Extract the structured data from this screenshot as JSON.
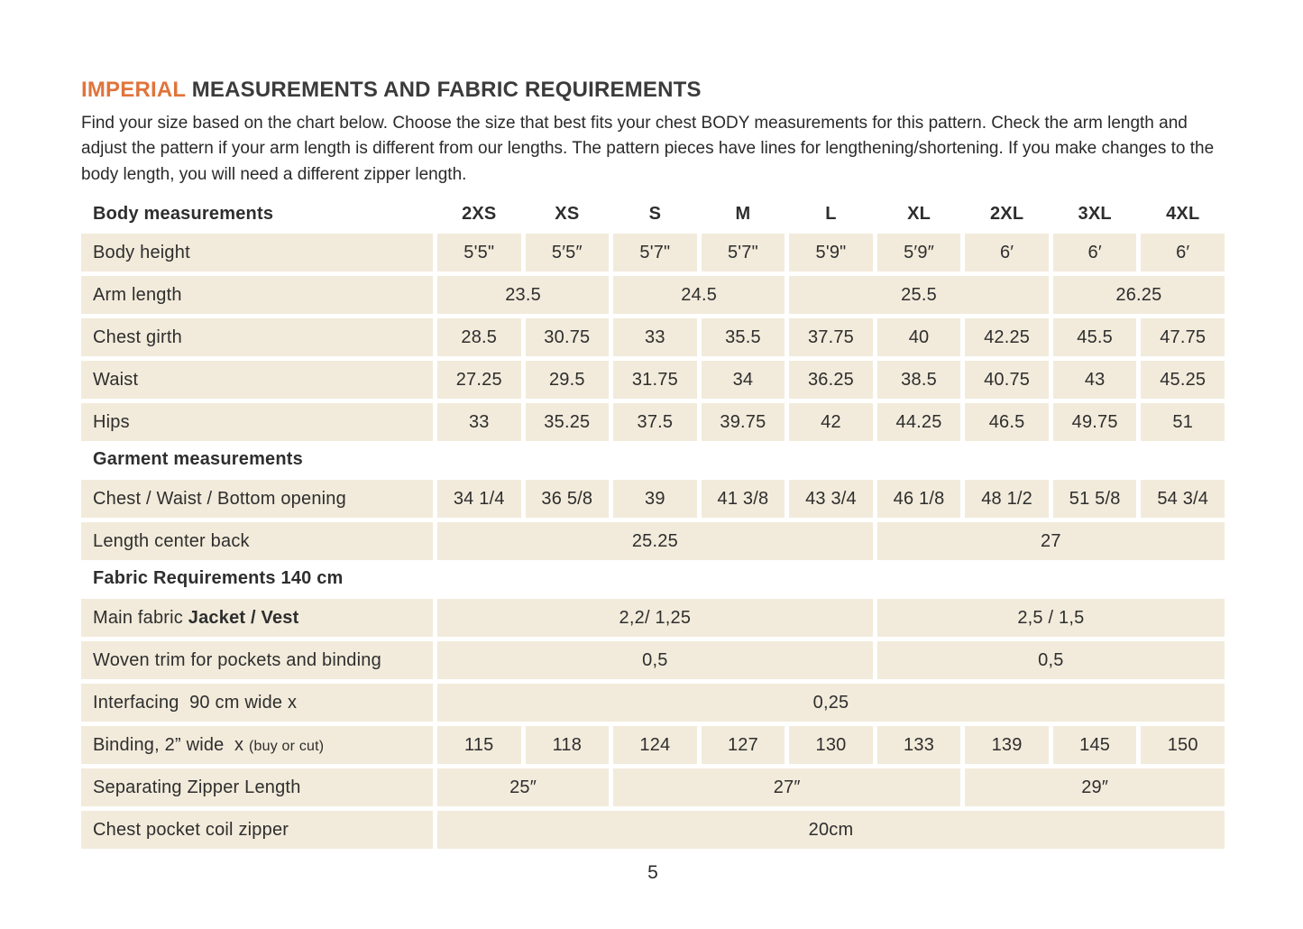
{
  "page": {
    "title_highlight": "IMPERIAL",
    "title_rest": " MEASUREMENTS AND FABRIC REQUIREMENTS",
    "intro": "Find your size based on the chart below. Choose the size that best fits your chest BODY measurements for this pattern. Check the arm length and adjust the pattern if your arm length is different from our lengths. The pattern pieces have lines for lengthening/shortening. If you make changes to the body length, you will need a different zipper length.",
    "page_number": "5"
  },
  "colors": {
    "accent_orange": "#e0743c",
    "cell_beige": "#f2ebdb",
    "text_dark": "#2e2e2e"
  },
  "table": {
    "size_columns": [
      "2XS",
      "XS",
      "S",
      "M",
      "L",
      "XL",
      "2XL",
      "3XL",
      "4XL"
    ],
    "rows": [
      {
        "kind": "colheader",
        "label": "Body measurements"
      },
      {
        "kind": "data",
        "label": "Body height",
        "cells": [
          {
            "span": 1,
            "text": "5'5\""
          },
          {
            "span": 1,
            "text": "5′5″"
          },
          {
            "span": 1,
            "text": "5'7\""
          },
          {
            "span": 1,
            "text": "5'7\""
          },
          {
            "span": 1,
            "text": "5'9\""
          },
          {
            "span": 1,
            "text": "5′9″"
          },
          {
            "span": 1,
            "text": "6′"
          },
          {
            "span": 1,
            "text": "6′"
          },
          {
            "span": 1,
            "text": "6′"
          }
        ]
      },
      {
        "kind": "data",
        "label": "Arm length",
        "cells": [
          {
            "span": 2,
            "text": "23.5"
          },
          {
            "span": 2,
            "text": "24.5"
          },
          {
            "span": 3,
            "text": "25.5"
          },
          {
            "span": 2,
            "text": "26.25"
          }
        ]
      },
      {
        "kind": "data",
        "label": "Chest girth",
        "cells": [
          {
            "span": 1,
            "text": "28.5"
          },
          {
            "span": 1,
            "text": "30.75"
          },
          {
            "span": 1,
            "text": "33"
          },
          {
            "span": 1,
            "text": "35.5"
          },
          {
            "span": 1,
            "text": "37.75"
          },
          {
            "span": 1,
            "text": "40"
          },
          {
            "span": 1,
            "text": "42.25"
          },
          {
            "span": 1,
            "text": "45.5"
          },
          {
            "span": 1,
            "text": "47.75"
          }
        ]
      },
      {
        "kind": "data",
        "label": "Waist",
        "cells": [
          {
            "span": 1,
            "text": "27.25"
          },
          {
            "span": 1,
            "text": "29.5"
          },
          {
            "span": 1,
            "text": "31.75"
          },
          {
            "span": 1,
            "text": "34"
          },
          {
            "span": 1,
            "text": "36.25"
          },
          {
            "span": 1,
            "text": "38.5"
          },
          {
            "span": 1,
            "text": "40.75"
          },
          {
            "span": 1,
            "text": "43"
          },
          {
            "span": 1,
            "text": "45.25"
          }
        ]
      },
      {
        "kind": "data",
        "label": "Hips",
        "cells": [
          {
            "span": 1,
            "text": "33"
          },
          {
            "span": 1,
            "text": "35.25"
          },
          {
            "span": 1,
            "text": "37.5"
          },
          {
            "span": 1,
            "text": "39.75"
          },
          {
            "span": 1,
            "text": "42"
          },
          {
            "span": 1,
            "text": "44.25"
          },
          {
            "span": 1,
            "text": "46.5"
          },
          {
            "span": 1,
            "text": "49.75"
          },
          {
            "span": 1,
            "text": "51"
          }
        ]
      },
      {
        "kind": "section",
        "label": "Garment measurements"
      },
      {
        "kind": "data",
        "label": "Chest / Waist / Bottom opening",
        "cells": [
          {
            "span": 1,
            "text": "34 1/4"
          },
          {
            "span": 1,
            "text": "36 5/8"
          },
          {
            "span": 1,
            "text": "39"
          },
          {
            "span": 1,
            "text": "41 3/8"
          },
          {
            "span": 1,
            "text": "43 3/4"
          },
          {
            "span": 1,
            "text": "46 1/8"
          },
          {
            "span": 1,
            "text": "48 1/2"
          },
          {
            "span": 1,
            "text": "51 5/8"
          },
          {
            "span": 1,
            "text": "54 3/4"
          }
        ]
      },
      {
        "kind": "data",
        "label": "Length center back",
        "cells": [
          {
            "span": 5,
            "text": "25.25"
          },
          {
            "span": 4,
            "text": "27"
          }
        ]
      },
      {
        "kind": "section",
        "label": "Fabric Requirements 140 cm"
      },
      {
        "kind": "data",
        "label_parts": [
          {
            "style": "normal",
            "text": "Main fabric "
          },
          {
            "style": "bold",
            "text": "Jacket / Vest"
          }
        ],
        "cells": [
          {
            "span": 5,
            "text": "2,2/ 1,25"
          },
          {
            "span": 4,
            "text": "2,5 / 1,5"
          }
        ]
      },
      {
        "kind": "data",
        "label": "Woven trim for pockets and binding",
        "cells": [
          {
            "span": 5,
            "text": "0,5"
          },
          {
            "span": 4,
            "text": "0,5"
          }
        ]
      },
      {
        "kind": "data",
        "label": "Interfacing  90 cm wide x",
        "cells": [
          {
            "span": 9,
            "text": "0,25"
          }
        ]
      },
      {
        "kind": "data",
        "label_parts": [
          {
            "style": "normal",
            "text": "Binding, 2” wide  x "
          },
          {
            "style": "small",
            "text": "(buy or cut)"
          }
        ],
        "cells": [
          {
            "span": 1,
            "text": "115"
          },
          {
            "span": 1,
            "text": "118"
          },
          {
            "span": 1,
            "text": "124"
          },
          {
            "span": 1,
            "text": "127"
          },
          {
            "span": 1,
            "text": "130"
          },
          {
            "span": 1,
            "text": "133"
          },
          {
            "span": 1,
            "text": "139"
          },
          {
            "span": 1,
            "text": "145"
          },
          {
            "span": 1,
            "text": "150"
          }
        ]
      },
      {
        "kind": "data",
        "label": "Separating Zipper Length",
        "cells": [
          {
            "span": 2,
            "text": "25″"
          },
          {
            "span": 4,
            "text": "27″"
          },
          {
            "span": 3,
            "text": "29″"
          }
        ]
      },
      {
        "kind": "data",
        "label": "Chest pocket coil zipper",
        "cells": [
          {
            "span": 9,
            "text": "20cm"
          }
        ]
      }
    ]
  }
}
